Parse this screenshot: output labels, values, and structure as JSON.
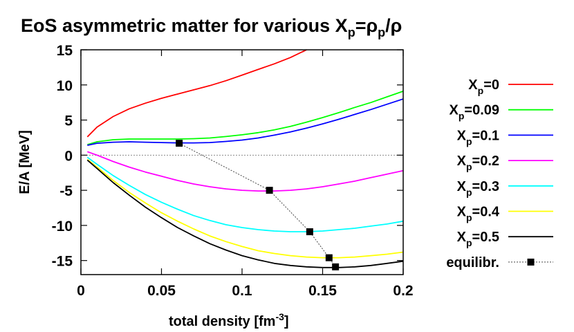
{
  "chart_data": {
    "type": "line",
    "title": {
      "prefix": "EoS asymmetric matter for various X",
      "sub": "p",
      "mid": "=ρ",
      "sub2": "p",
      "suffix": "/ρ"
    },
    "xlabel": {
      "text": "total density [fm",
      "sup": "-3",
      "close": "]"
    },
    "ylabel": "E/A [MeV]",
    "xlim": [
      0,
      0.2
    ],
    "ylim": [
      -17,
      15
    ],
    "xticks": [
      "0",
      "0.05",
      "0.1",
      "0.15",
      "0.2"
    ],
    "xtick_values": [
      0,
      0.05,
      0.1,
      0.15,
      0.2
    ],
    "yticks": [
      "15",
      "10",
      "5",
      "0",
      "-5",
      "-10",
      "-15"
    ],
    "ytick_values": [
      15,
      10,
      5,
      0,
      -5,
      -10,
      -15
    ],
    "zero_line": true,
    "legend_position": "right",
    "series": [
      {
        "name": "Xp=0",
        "label_main": "X",
        "label_sub": "p",
        "label_val": "=0",
        "color": "#ff0000",
        "x": [
          0.004,
          0.01,
          0.02,
          0.03,
          0.04,
          0.05,
          0.06,
          0.07,
          0.08,
          0.09,
          0.1,
          0.11,
          0.12,
          0.13,
          0.14,
          0.1375
        ],
        "y": [
          2.6,
          4.0,
          5.5,
          6.6,
          7.4,
          8.1,
          8.7,
          9.3,
          9.9,
          10.6,
          11.4,
          12.2,
          13.0,
          13.9,
          15.0,
          14.7
        ]
      },
      {
        "name": "Xp=0.09",
        "label_main": "X",
        "label_sub": "p",
        "label_val": "=0.09",
        "color": "#00ff00",
        "x": [
          0.004,
          0.01,
          0.02,
          0.03,
          0.04,
          0.05,
          0.06,
          0.07,
          0.08,
          0.09,
          0.1,
          0.11,
          0.12,
          0.13,
          0.14,
          0.15,
          0.16,
          0.17,
          0.18,
          0.19,
          0.2
        ],
        "y": [
          1.5,
          1.9,
          2.2,
          2.3,
          2.3,
          2.3,
          2.3,
          2.35,
          2.45,
          2.65,
          2.9,
          3.2,
          3.6,
          4.1,
          4.7,
          5.35,
          6.05,
          6.8,
          7.5,
          8.3,
          9.1
        ]
      },
      {
        "name": "Xp=0.1",
        "label_main": "X",
        "label_sub": "p",
        "label_val": "=0.1",
        "color": "#0000ff",
        "x": [
          0.004,
          0.01,
          0.02,
          0.03,
          0.04,
          0.05,
          0.06,
          0.07,
          0.08,
          0.09,
          0.1,
          0.11,
          0.12,
          0.13,
          0.14,
          0.15,
          0.16,
          0.17,
          0.18,
          0.19,
          0.2
        ],
        "y": [
          1.4,
          1.7,
          1.85,
          1.9,
          1.85,
          1.8,
          1.75,
          1.75,
          1.8,
          1.95,
          2.15,
          2.45,
          2.85,
          3.3,
          3.85,
          4.45,
          5.1,
          5.8,
          6.5,
          7.25,
          8.0
        ]
      },
      {
        "name": "Xp=0.2",
        "label_main": "X",
        "label_sub": "p",
        "label_val": "=0.2",
        "color": "#ff00ff",
        "x": [
          0.004,
          0.01,
          0.02,
          0.03,
          0.04,
          0.05,
          0.06,
          0.07,
          0.08,
          0.09,
          0.1,
          0.11,
          0.12,
          0.13,
          0.14,
          0.15,
          0.16,
          0.17,
          0.18,
          0.19,
          0.2
        ],
        "y": [
          0.5,
          0.0,
          -0.9,
          -1.7,
          -2.4,
          -3.0,
          -3.6,
          -4.1,
          -4.5,
          -4.8,
          -5.0,
          -5.1,
          -5.1,
          -5.0,
          -4.8,
          -4.5,
          -4.1,
          -3.7,
          -3.2,
          -2.7,
          -2.2
        ]
      },
      {
        "name": "Xp=0.3",
        "label_main": "X",
        "label_sub": "p",
        "label_val": "=0.3",
        "color": "#00ffff",
        "x": [
          0.004,
          0.01,
          0.02,
          0.03,
          0.04,
          0.05,
          0.06,
          0.07,
          0.08,
          0.09,
          0.1,
          0.11,
          0.12,
          0.13,
          0.14,
          0.15,
          0.16,
          0.17,
          0.18,
          0.19,
          0.2
        ],
        "y": [
          -0.3,
          -1.3,
          -2.9,
          -4.3,
          -5.6,
          -6.7,
          -7.7,
          -8.6,
          -9.3,
          -9.9,
          -10.3,
          -10.6,
          -10.8,
          -10.9,
          -10.9,
          -10.8,
          -10.6,
          -10.4,
          -10.1,
          -9.8,
          -9.4
        ]
      },
      {
        "name": "Xp=0.4",
        "label_main": "X",
        "label_sub": "p",
        "label_val": "=0.4",
        "color": "#ffff00",
        "x": [
          0.004,
          0.01,
          0.02,
          0.03,
          0.04,
          0.05,
          0.06,
          0.07,
          0.08,
          0.09,
          0.1,
          0.11,
          0.12,
          0.13,
          0.14,
          0.15,
          0.16,
          0.17,
          0.18,
          0.19,
          0.2
        ],
        "y": [
          -0.6,
          -1.7,
          -3.6,
          -5.3,
          -6.8,
          -8.2,
          -9.4,
          -10.5,
          -11.5,
          -12.3,
          -13.0,
          -13.6,
          -14.0,
          -14.3,
          -14.5,
          -14.6,
          -14.6,
          -14.5,
          -14.3,
          -14.1,
          -13.8
        ]
      },
      {
        "name": "Xp=0.5",
        "label_main": "X",
        "label_sub": "p",
        "label_val": "=0.5",
        "color": "#000000",
        "x": [
          0.004,
          0.01,
          0.02,
          0.03,
          0.04,
          0.05,
          0.06,
          0.07,
          0.08,
          0.09,
          0.1,
          0.11,
          0.12,
          0.13,
          0.14,
          0.15,
          0.16,
          0.17,
          0.18,
          0.19,
          0.2
        ],
        "y": [
          -0.7,
          -1.9,
          -3.9,
          -5.7,
          -7.4,
          -8.9,
          -10.3,
          -11.5,
          -12.6,
          -13.5,
          -14.3,
          -14.9,
          -15.4,
          -15.7,
          -15.9,
          -16.0,
          -16.0,
          -15.9,
          -15.7,
          -15.4,
          -15.1
        ]
      }
    ],
    "equilibrium": {
      "name": "equilibr.",
      "label": "equilibr.",
      "color": "#000000",
      "x": [
        0.061,
        0.117,
        0.142,
        0.154,
        0.158
      ],
      "y": [
        1.7,
        -5.0,
        -10.9,
        -14.6,
        -15.9
      ]
    }
  }
}
